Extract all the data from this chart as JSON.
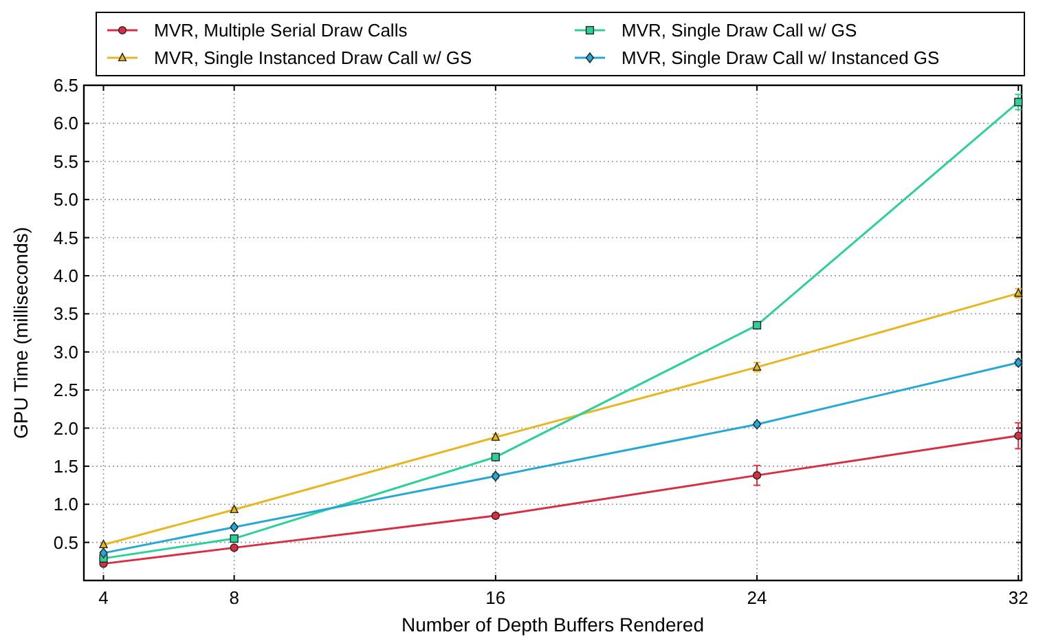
{
  "chart_data": {
    "type": "line",
    "xlabel": "Number of Depth Buffers Rendered",
    "ylabel": "GPU Time (milliseconds)",
    "x": [
      4,
      8,
      16,
      24,
      32
    ],
    "xlim": [
      3.4,
      32.1
    ],
    "xticks": [
      4,
      8,
      16,
      24,
      32
    ],
    "ylim": [
      0,
      6.5
    ],
    "yticks": [
      0.5,
      {
        "value": 1,
        "label": "1.0"
      },
      1.5,
      {
        "value": 2,
        "label": "2.0"
      },
      2.5,
      {
        "value": 3,
        "label": "3.0"
      },
      3.5,
      {
        "value": 4,
        "label": "4.0"
      },
      4.5,
      {
        "value": 5,
        "label": "5.0"
      },
      5.5,
      {
        "value": 6,
        "label": "6.0"
      },
      6.5
    ],
    "grid": true,
    "legend": "top",
    "line_style": "solid",
    "series": [
      {
        "name": "MVR, Multiple Serial Draw Calls",
        "color": "#d62f43",
        "marker": "circle",
        "values": [
          0.22,
          0.43,
          0.85,
          1.38,
          1.9
        ],
        "errors": [
          0.02,
          0.02,
          0.03,
          0.13,
          0.17
        ]
      },
      {
        "name": "MVR, Single Instanced Draw Call w/ GS",
        "color": "#e6b722",
        "marker": "triangle",
        "values": [
          0.47,
          0.93,
          1.88,
          2.8,
          3.77
        ],
        "errors": [
          0.02,
          0.03,
          0.04,
          0.06,
          0.06
        ]
      },
      {
        "name": "MVR, Single Draw Call w/ GS",
        "color": "#2ed09a",
        "marker": "square",
        "values": [
          0.29,
          0.55,
          1.62,
          3.35,
          6.28
        ],
        "errors": [
          0.02,
          0.02,
          0.03,
          0.04,
          0.1
        ]
      },
      {
        "name": "MVR, Single Draw Call w/ Instanced GS",
        "color": "#27a8d4",
        "marker": "diamond",
        "values": [
          0.36,
          0.7,
          1.37,
          2.05,
          2.86
        ],
        "errors": [
          0.02,
          0.02,
          0.03,
          0.03,
          0.04
        ]
      }
    ]
  }
}
